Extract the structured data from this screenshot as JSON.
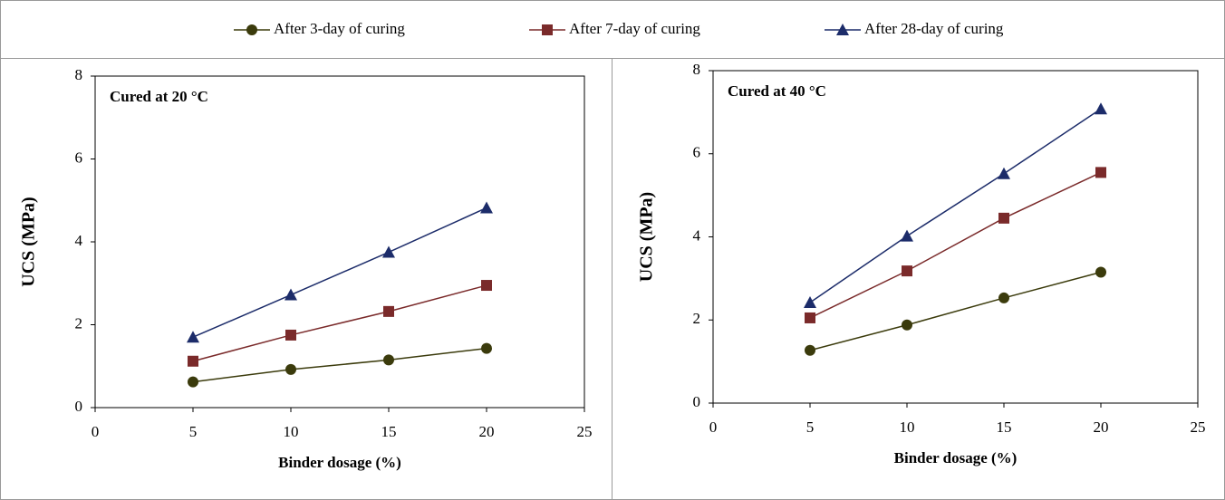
{
  "chart_data": [
    {
      "type": "line",
      "annotation": "Cured at 20 °C",
      "xlabel": "Binder dosage (%)",
      "ylabel": "UCS (MPa)",
      "x": [
        5,
        10,
        15,
        20
      ],
      "xlim": [
        0,
        25
      ],
      "xticks": [
        0,
        5,
        10,
        15,
        20,
        25
      ],
      "ylim": [
        0,
        8
      ],
      "yticks": [
        0,
        2,
        4,
        6,
        8
      ],
      "series": [
        {
          "name": "After 3-day of curing",
          "color": "#3b3b0c",
          "marker": "circle",
          "values": [
            0.62,
            0.92,
            1.15,
            1.43
          ]
        },
        {
          "name": "After 7-day of curing",
          "color": "#7a2a2a",
          "marker": "square",
          "values": [
            1.12,
            1.75,
            2.32,
            2.95
          ]
        },
        {
          "name": "After 28-day of curing",
          "color": "#1c2c6a",
          "marker": "triangle",
          "values": [
            1.7,
            2.72,
            3.75,
            4.82
          ]
        }
      ]
    },
    {
      "type": "line",
      "annotation": "Cured at 40 °C",
      "xlabel": "Binder dosage (%)",
      "ylabel": "UCS (MPa)",
      "x": [
        5,
        10,
        15,
        20
      ],
      "xlim": [
        0,
        25
      ],
      "xticks": [
        0,
        5,
        10,
        15,
        20,
        25
      ],
      "ylim": [
        0,
        8
      ],
      "yticks": [
        0,
        2,
        4,
        6,
        8
      ],
      "series": [
        {
          "color": "#3b3b0c",
          "marker": "circle",
          "values": [
            1.27,
            1.88,
            2.53,
            3.15
          ]
        },
        {
          "color": "#7a2a2a",
          "marker": "square",
          "values": [
            2.05,
            3.18,
            4.45,
            5.55
          ]
        },
        {
          "color": "#1c2c6a",
          "marker": "triangle",
          "values": [
            2.42,
            4.02,
            5.52,
            7.08
          ]
        }
      ]
    }
  ]
}
